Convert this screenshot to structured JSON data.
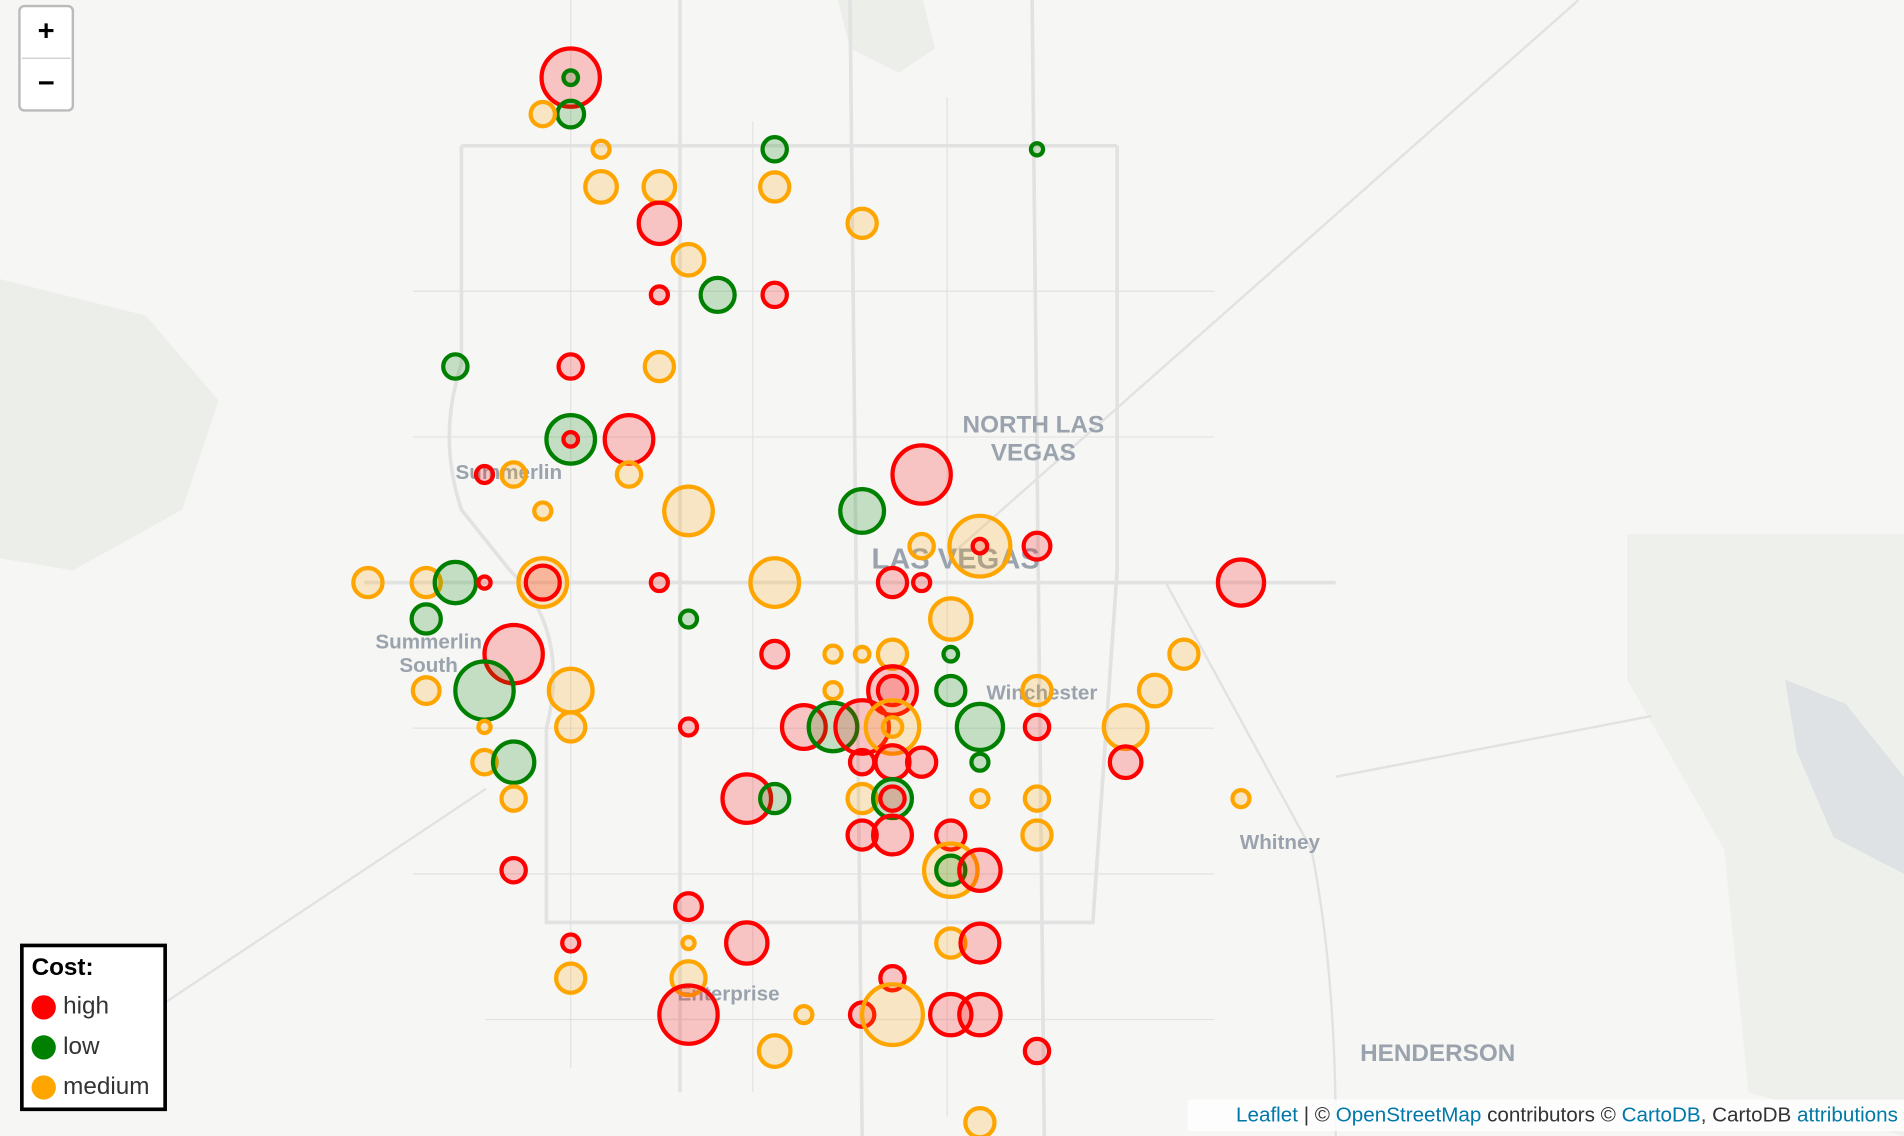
{
  "zoom_controls": {
    "zoom_in": "+",
    "zoom_out": "−"
  },
  "legend": {
    "title": "Cost:",
    "entries": [
      {
        "label": "high",
        "color": "#ff0000"
      },
      {
        "label": "low",
        "color": "#008000"
      },
      {
        "label": "medium",
        "color": "#ffa500"
      }
    ]
  },
  "map_labels": [
    "NORTH LAS",
    "VEGAS",
    "LAS VEGAS",
    "Summerlin",
    "Summerlin",
    "South",
    "Winchester",
    "Enterprise",
    "Whitney",
    "HENDERSON"
  ],
  "attribution": {
    "leaflet": "Leaflet",
    "sep1": " | © ",
    "osm": "OpenStreetMap",
    "sep2": " contributors © ",
    "cartodb": "CartoDB",
    "sep3": ", CartoDB ",
    "attributions": "attributions"
  }
}
